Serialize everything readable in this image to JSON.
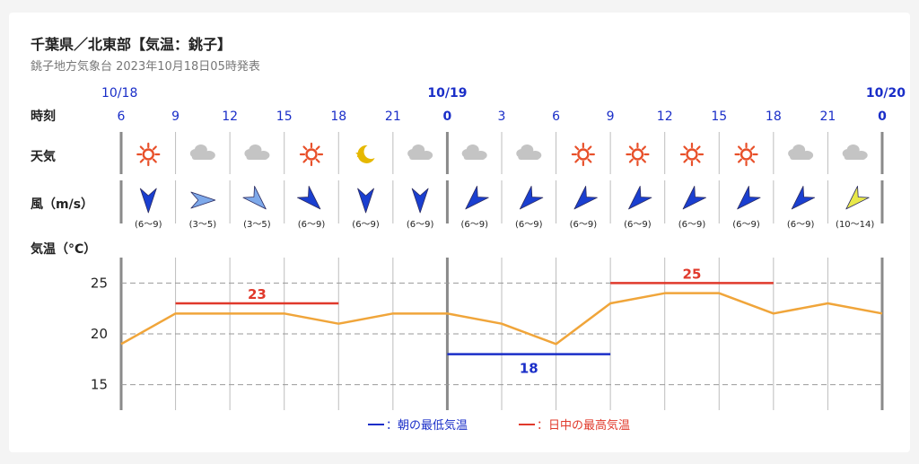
{
  "header": {
    "title": "千葉県／北東部【気温：銚子】",
    "subtitle": "銚子地方気象台 2023年10月18日05時発表"
  },
  "row_labels": {
    "time": "時刻",
    "weather": "天気",
    "wind": "風（m/s）",
    "temperature": "気温（°C）"
  },
  "dates": [
    {
      "label": "10/18",
      "index": 0
    },
    {
      "label": "10/19",
      "index": 6
    },
    {
      "label": "10/20",
      "index": 14
    }
  ],
  "times": [
    "6",
    "9",
    "12",
    "15",
    "18",
    "21",
    "0",
    "3",
    "6",
    "9",
    "12",
    "15",
    "18",
    "21",
    "0"
  ],
  "weather": [
    {
      "icon": "sun-icon"
    },
    {
      "icon": "cloud-icon"
    },
    {
      "icon": "cloud-icon"
    },
    {
      "icon": "sun-icon"
    },
    {
      "icon": "moon-star-icon"
    },
    {
      "icon": "cloud-icon"
    },
    {
      "icon": "cloud-icon"
    },
    {
      "icon": "cloud-icon"
    },
    {
      "icon": "sun-icon"
    },
    {
      "icon": "sun-icon"
    },
    {
      "icon": "sun-icon"
    },
    {
      "icon": "sun-icon"
    },
    {
      "icon": "cloud-icon"
    },
    {
      "icon": "cloud-icon"
    }
  ],
  "wind": [
    {
      "speed": "(6〜9)",
      "direction": "S",
      "color": "#1a3fd0"
    },
    {
      "speed": "(3〜5)",
      "direction": "E",
      "color": "#7ea9ea"
    },
    {
      "speed": "(3〜5)",
      "direction": "SE",
      "color": "#7ea9ea"
    },
    {
      "speed": "(6〜9)",
      "direction": "SE",
      "color": "#1a3fd0"
    },
    {
      "speed": "(6〜9)",
      "direction": "S",
      "color": "#1a3fd0"
    },
    {
      "speed": "(6〜9)",
      "direction": "S",
      "color": "#1a3fd0"
    },
    {
      "speed": "(6〜9)",
      "direction": "SW",
      "color": "#1a3fd0"
    },
    {
      "speed": "(6〜9)",
      "direction": "SW",
      "color": "#1a3fd0"
    },
    {
      "speed": "(6〜9)",
      "direction": "SW",
      "color": "#1a3fd0"
    },
    {
      "speed": "(6〜9)",
      "direction": "SW",
      "color": "#1a3fd0"
    },
    {
      "speed": "(6〜9)",
      "direction": "SW",
      "color": "#1a3fd0"
    },
    {
      "speed": "(6〜9)",
      "direction": "SW",
      "color": "#1a3fd0"
    },
    {
      "speed": "(6〜9)",
      "direction": "SW",
      "color": "#1a3fd0"
    },
    {
      "speed": "(10〜14)",
      "direction": "SW",
      "color": "#e8e84a"
    }
  ],
  "legend": {
    "min_label": "：朝の最低気温",
    "max_label": "：日中の最高気温"
  },
  "colors": {
    "date_blue": "#1a2ec8",
    "min_line": "#1a2ec8",
    "max_line": "#e0392b",
    "temp_line": "#f0a53a",
    "sun": "#e8502a",
    "cloud": "#c4c4c4",
    "moon": "#e6b800"
  },
  "chart_data": {
    "type": "line",
    "x": [
      "10/18 6",
      "9",
      "12",
      "15",
      "18",
      "21",
      "10/19 0",
      "3",
      "6",
      "9",
      "12",
      "15",
      "18",
      "21",
      "10/20 0"
    ],
    "series": [
      {
        "values": [
          19,
          22,
          22,
          22,
          21,
          22,
          22,
          21,
          19,
          23,
          24,
          24,
          22,
          23,
          22
        ]
      }
    ],
    "yticks": [
      15,
      20,
      25
    ],
    "ylim": [
      12.5,
      27.5
    ],
    "grid": true,
    "min_temp": {
      "value": 18,
      "label": "18",
      "from_index": 6,
      "to_index": 9
    },
    "max_temps": [
      {
        "value": 23,
        "label": "23",
        "from_index": 1,
        "to_index": 4
      },
      {
        "value": 25,
        "label": "25",
        "from_index": 9,
        "to_index": 12
      }
    ]
  }
}
